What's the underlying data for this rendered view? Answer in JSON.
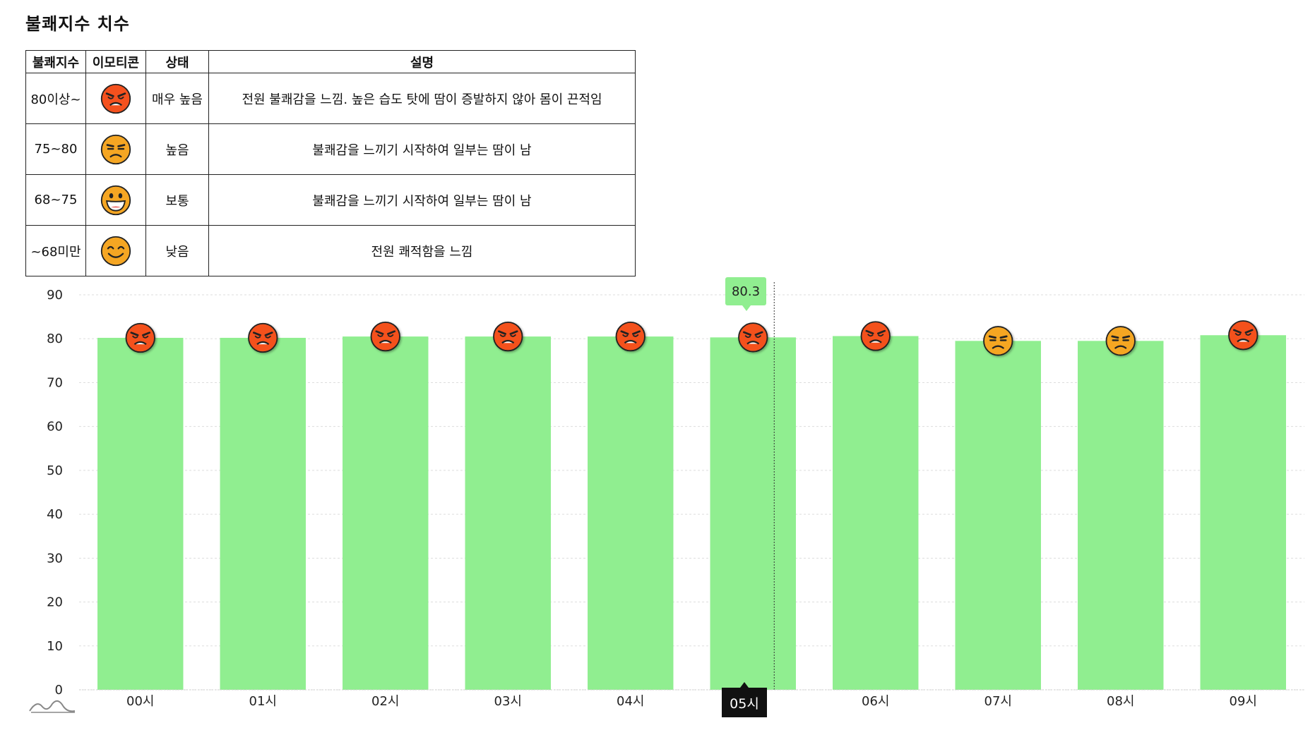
{
  "page": {
    "title": "불쾌지수 치수"
  },
  "legend_table": {
    "headers": [
      "불쾌지수",
      "이모티콘",
      "상태",
      "설명"
    ],
    "rows": [
      {
        "range": "80이상~",
        "emoji": "angry-face-icon",
        "state": "매우 높음",
        "description": "전원 불쾌감을 느낌. 높은 습도 탓에 땀이 증발하지 않아 몸이 끈적임"
      },
      {
        "range": "75~80",
        "emoji": "annoyed-face-icon",
        "state": "높음",
        "description": "불쾌감을 느끼기 시작하여 일부는 땀이 남"
      },
      {
        "range": "68~75",
        "emoji": "grinning-face-icon",
        "state": "보통",
        "description": "불쾌감을 느끼기 시작하여 일부는 땀이 남"
      },
      {
        "range": "~68미만",
        "emoji": "smiling-face-icon",
        "state": "낮음",
        "description": "전원 쾌적함을 느낌"
      }
    ]
  },
  "chart_data": {
    "type": "bar",
    "categories": [
      "00시",
      "01시",
      "02시",
      "03시",
      "04시",
      "05시",
      "06시",
      "07시",
      "08시",
      "09시"
    ],
    "values": [
      80.2,
      80.2,
      80.5,
      80.5,
      80.5,
      80.3,
      80.6,
      79.5,
      79.5,
      80.8
    ],
    "emoji": [
      "angry-face-icon",
      "angry-face-icon",
      "angry-face-icon",
      "angry-face-icon",
      "angry-face-icon",
      "angry-face-icon",
      "angry-face-icon",
      "annoyed-face-icon",
      "annoyed-face-icon",
      "angry-face-icon"
    ],
    "ylim": [
      0,
      90
    ],
    "yticks": [
      0,
      10,
      20,
      30,
      40,
      50,
      60,
      70,
      80,
      90
    ],
    "grid": true,
    "bar_color": "#90ee90",
    "cursor_category": "05시",
    "tooltip_value": "80.3"
  },
  "colors": {
    "bar": "#90ee90",
    "angry_face": "#f4511e",
    "annoyed_face": "#f5a623",
    "happy_face": "#f5a623"
  }
}
